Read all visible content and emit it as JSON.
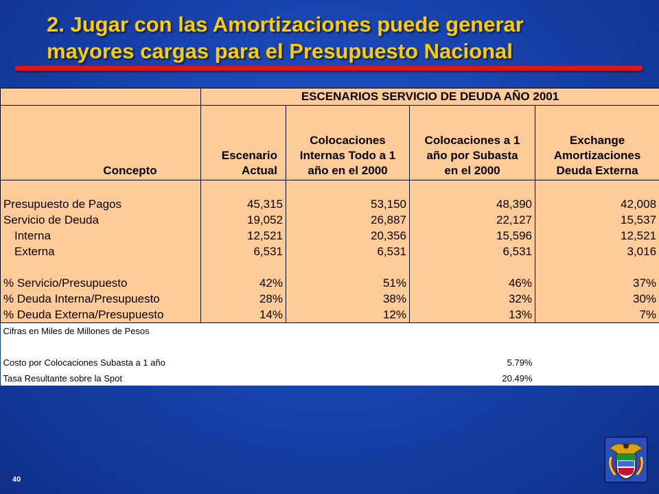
{
  "slide": {
    "title_line1": "2. Jugar con las Amortizaciones puede generar",
    "title_line2": "mayores cargas para el Presupuesto Nacional",
    "page_number": "40",
    "colors": {
      "background": "#1845b0",
      "title": "#ffcc00",
      "underline": "#e0141e",
      "table_fill": "#ffcc99"
    },
    "emblem_icon": "coat-of-arms-icon"
  },
  "table": {
    "banner": "ESCENARIOS SERVICIO DE DEUDA AÑO 2001",
    "headers": {
      "concepto": "Concepto",
      "col1_line1": "Escenario",
      "col1_line2": "Actual",
      "col2_line1": "Colocaciones",
      "col2_line2": "Internas Todo a 1",
      "col2_line3": "año en el 2000",
      "col3_line1": "Colocaciones a 1",
      "col3_line2": "año por Subasta",
      "col3_line3": "en el 2000",
      "col4_line1": "Exchange",
      "col4_line2": "Amortizaciones",
      "col4_line3": "Deuda Externa"
    },
    "rows": [
      {
        "label": "Presupuesto de Pagos",
        "values": [
          "45,315",
          "53,150",
          "48,390",
          "42,008"
        ]
      },
      {
        "label": "Servicio de Deuda",
        "values": [
          "19,052",
          "26,887",
          "22,127",
          "15,537"
        ]
      },
      {
        "label": "Interna",
        "values": [
          "12,521",
          "20,356",
          "15,596",
          "12,521"
        ]
      },
      {
        "label": "Externa",
        "values": [
          "6,531",
          "6,531",
          "6,531",
          "3,016"
        ]
      },
      {
        "label": "% Servicio/Presupuesto",
        "values": [
          "42%",
          "51%",
          "46%",
          "37%"
        ]
      },
      {
        "label": "% Deuda Interna/Presupuesto",
        "values": [
          "28%",
          "38%",
          "32%",
          "30%"
        ]
      },
      {
        "label": "% Deuda Externa/Presupuesto",
        "values": [
          "14%",
          "12%",
          "13%",
          "7%"
        ]
      }
    ],
    "notes": {
      "units": "Cifras en Miles de Millones de Pesos",
      "cost_label": "Costo por Colocaciones  Subasta a 1 año",
      "cost_value": "5.79%",
      "rate_label": "Tasa Resultante sobre la Spot",
      "rate_value": "20.49%"
    }
  }
}
